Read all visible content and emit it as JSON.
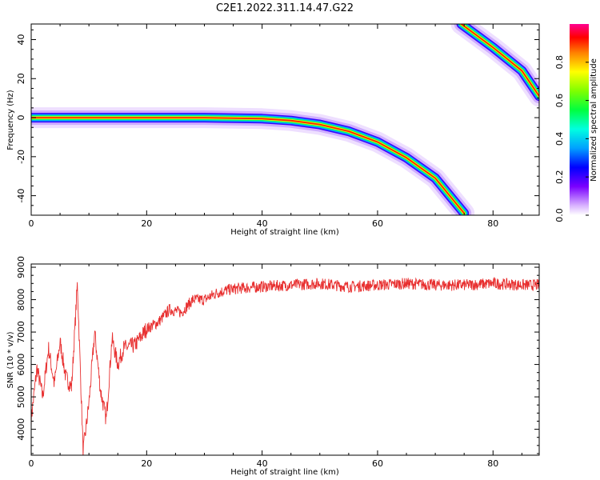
{
  "page": {
    "title": "C2E1.2022.311.14.47.G22"
  },
  "chart_data": [
    {
      "type": "heatmap",
      "xlabel": "Height of straight line (km)",
      "ylabel": "Frequency (Hz)",
      "xlim": [
        0,
        88
      ],
      "ylim": [
        -50,
        48
      ],
      "x_ticks": [
        0,
        20,
        40,
        60,
        80
      ],
      "y_ticks": [
        -40,
        -20,
        0,
        20,
        40
      ],
      "ridges": [
        {
          "name": "",
          "points": [
            [
              0,
              0
            ],
            [
              10,
              0
            ],
            [
              20,
              0
            ],
            [
              30,
              0
            ],
            [
              40,
              -0.5
            ],
            [
              45,
              -1.5
            ],
            [
              50,
              -3.5
            ],
            [
              55,
              -7
            ],
            [
              60,
              -12.5
            ],
            [
              65,
              -20.5
            ],
            [
              70,
              -31
            ],
            [
              75,
              -49
            ]
          ]
        },
        {
          "name": "",
          "points": [
            [
              74.5,
              48
            ],
            [
              80,
              36
            ],
            [
              85,
              24
            ],
            [
              88,
              11
            ]
          ]
        }
      ],
      "colorbar": {
        "label": "Normalized spectral amplitude",
        "range": [
          0,
          1
        ],
        "ticks": [
          0.0,
          0.2,
          0.4,
          0.6,
          0.8
        ]
      }
    },
    {
      "type": "line",
      "xlabel": "Height of straight line (km)",
      "ylabel": "SNR (10 * v/v)",
      "xlim": [
        0,
        88
      ],
      "ylim": [
        3200,
        9100
      ],
      "x_ticks": [
        0,
        20,
        40,
        60,
        80
      ],
      "y_ticks": [
        4000,
        5000,
        6000,
        7000,
        8000,
        9000
      ],
      "series": [
        {
          "name": "",
          "color": "#e83030",
          "x": [
            0,
            1,
            2,
            3,
            4,
            5,
            6,
            7,
            8,
            9,
            10,
            11,
            12,
            13,
            14,
            15,
            16,
            18,
            20,
            22,
            24,
            26,
            28,
            30,
            32,
            34,
            36,
            40,
            45,
            50,
            55,
            60,
            65,
            70,
            75,
            80,
            85,
            88
          ],
          "y": [
            4300,
            5900,
            5000,
            6500,
            5400,
            6700,
            5600,
            5300,
            8500,
            3300,
            4800,
            7000,
            5200,
            4300,
            6800,
            6000,
            6500,
            6600,
            7100,
            7300,
            7700,
            7600,
            8000,
            8000,
            8200,
            8300,
            8350,
            8400,
            8450,
            8500,
            8400,
            8450,
            8500,
            8450,
            8450,
            8500,
            8450,
            8450
          ]
        }
      ]
    }
  ]
}
